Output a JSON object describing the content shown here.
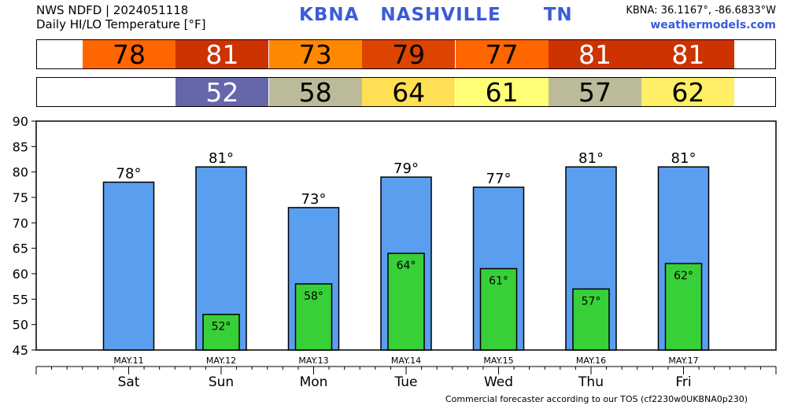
{
  "header": {
    "line1": "NWS NDFD | 2024051118",
    "line2": "Daily HI/LO Temperature [°F]",
    "title": "KBNA   NASHVILLE      TN",
    "coords": "KBNA: 36.1167°, -86.6833°W",
    "site": "weathermodels.com"
  },
  "footer": "Commercial forecaster according to our TOS (cf2230w0UKBNA0p230)",
  "colors": {
    "hi_bar": "#5a9ef0",
    "lo_bar": "#38d038"
  },
  "strips": {
    "hi": [
      {
        "label": "78",
        "color": "#ff6600",
        "text_color": "#000000"
      },
      {
        "label": "81",
        "color": "#cc3300",
        "text_color": "#ffffff"
      },
      {
        "label": "73",
        "color": "#ff8800",
        "text_color": "#000000"
      },
      {
        "label": "79",
        "color": "#dd4400",
        "text_color": "#000000"
      },
      {
        "label": "77",
        "color": "#ff6600",
        "text_color": "#000000"
      },
      {
        "label": "81",
        "color": "#cc3300",
        "text_color": "#ffffff"
      },
      {
        "label": "81",
        "color": "#cc3300",
        "text_color": "#ffffff"
      }
    ],
    "lo": [
      {
        "label": "",
        "color": "#ffffff",
        "text_color": "#000000"
      },
      {
        "label": "52",
        "color": "#6666aa",
        "text_color": "#ffffff"
      },
      {
        "label": "58",
        "color": "#bbbb99",
        "text_color": "#000000"
      },
      {
        "label": "64",
        "color": "#ffe055",
        "text_color": "#000000"
      },
      {
        "label": "61",
        "color": "#ffff77",
        "text_color": "#000000"
      },
      {
        "label": "57",
        "color": "#bbbb99",
        "text_color": "#000000"
      },
      {
        "label": "62",
        "color": "#ffee66",
        "text_color": "#000000"
      }
    ]
  },
  "chart_data": {
    "type": "bar",
    "categories": [
      "Sat",
      "Sun",
      "Mon",
      "Tue",
      "Wed",
      "Thu",
      "Fri"
    ],
    "dates": [
      "MAY.11",
      "MAY.12",
      "MAY.13",
      "MAY.14",
      "MAY.15",
      "MAY.16",
      "MAY.17"
    ],
    "series": [
      {
        "values": [
          78,
          81,
          73,
          79,
          77,
          81,
          81
        ]
      },
      {
        "values": [
          null,
          52,
          58,
          64,
          61,
          57,
          62
        ]
      }
    ],
    "hi_labels": [
      "78°",
      "81°",
      "73°",
      "79°",
      "77°",
      "81°",
      "81°"
    ],
    "lo_labels": [
      "",
      "52°",
      "58°",
      "64°",
      "61°",
      "57°",
      "62°"
    ],
    "yticks": [
      "45",
      "50",
      "55",
      "60",
      "65",
      "70",
      "75",
      "80",
      "85",
      "90"
    ],
    "ylim": [
      45,
      90
    ],
    "grid": false
  }
}
